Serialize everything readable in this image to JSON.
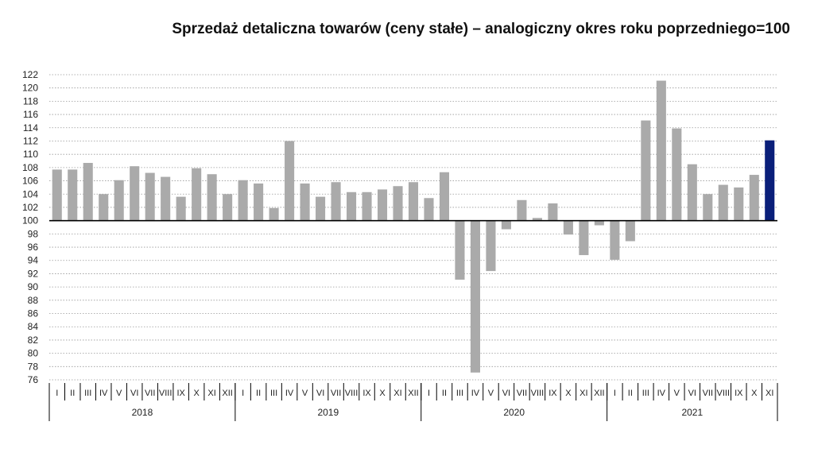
{
  "chart_data": {
    "type": "bar",
    "title": "Sprzedaż detaliczna towarów (ceny stałe) – analogiczny okres roku poprzedniego=100",
    "baseline": 100,
    "ylim": [
      76,
      122
    ],
    "yticks": [
      76,
      78,
      80,
      82,
      84,
      86,
      88,
      90,
      92,
      94,
      96,
      98,
      100,
      102,
      104,
      106,
      108,
      110,
      112,
      114,
      116,
      118,
      120,
      122
    ],
    "grid": true,
    "colors": {
      "bar": "#aaaaaa",
      "highlight": "#0a1f7a",
      "grid": "#999999"
    },
    "years": [
      {
        "label": "2018",
        "months": [
          "I",
          "II",
          "III",
          "IV",
          "V",
          "VI",
          "VII",
          "VIII",
          "IX",
          "X",
          "XI",
          "XII"
        ],
        "values": [
          107.7,
          107.7,
          108.7,
          104.0,
          106.1,
          108.2,
          107.2,
          106.6,
          103.6,
          107.9,
          107.0,
          104.0
        ]
      },
      {
        "label": "2019",
        "months": [
          "I",
          "II",
          "III",
          "IV",
          "V",
          "VI",
          "VII",
          "VIII",
          "IX",
          "X",
          "XI",
          "XII"
        ],
        "values": [
          106.1,
          105.6,
          101.9,
          112.0,
          105.6,
          103.6,
          105.8,
          104.3,
          104.3,
          104.7,
          105.2,
          105.8
        ]
      },
      {
        "label": "2020",
        "months": [
          "I",
          "II",
          "III",
          "IV",
          "V",
          "VI",
          "VII",
          "VIII",
          "IX",
          "X",
          "XI",
          "XII"
        ],
        "values": [
          103.4,
          107.3,
          91.1,
          77.1,
          92.4,
          98.7,
          103.1,
          100.4,
          102.6,
          97.9,
          94.8,
          99.3
        ]
      },
      {
        "label": "2021",
        "months": [
          "I",
          "II",
          "III",
          "IV",
          "V",
          "VI",
          "VII",
          "VIII",
          "IX",
          "X",
          "XI"
        ],
        "values": [
          94.1,
          96.9,
          115.1,
          121.1,
          113.9,
          108.5,
          104.0,
          105.4,
          105.0,
          106.9,
          112.1
        ]
      }
    ]
  }
}
